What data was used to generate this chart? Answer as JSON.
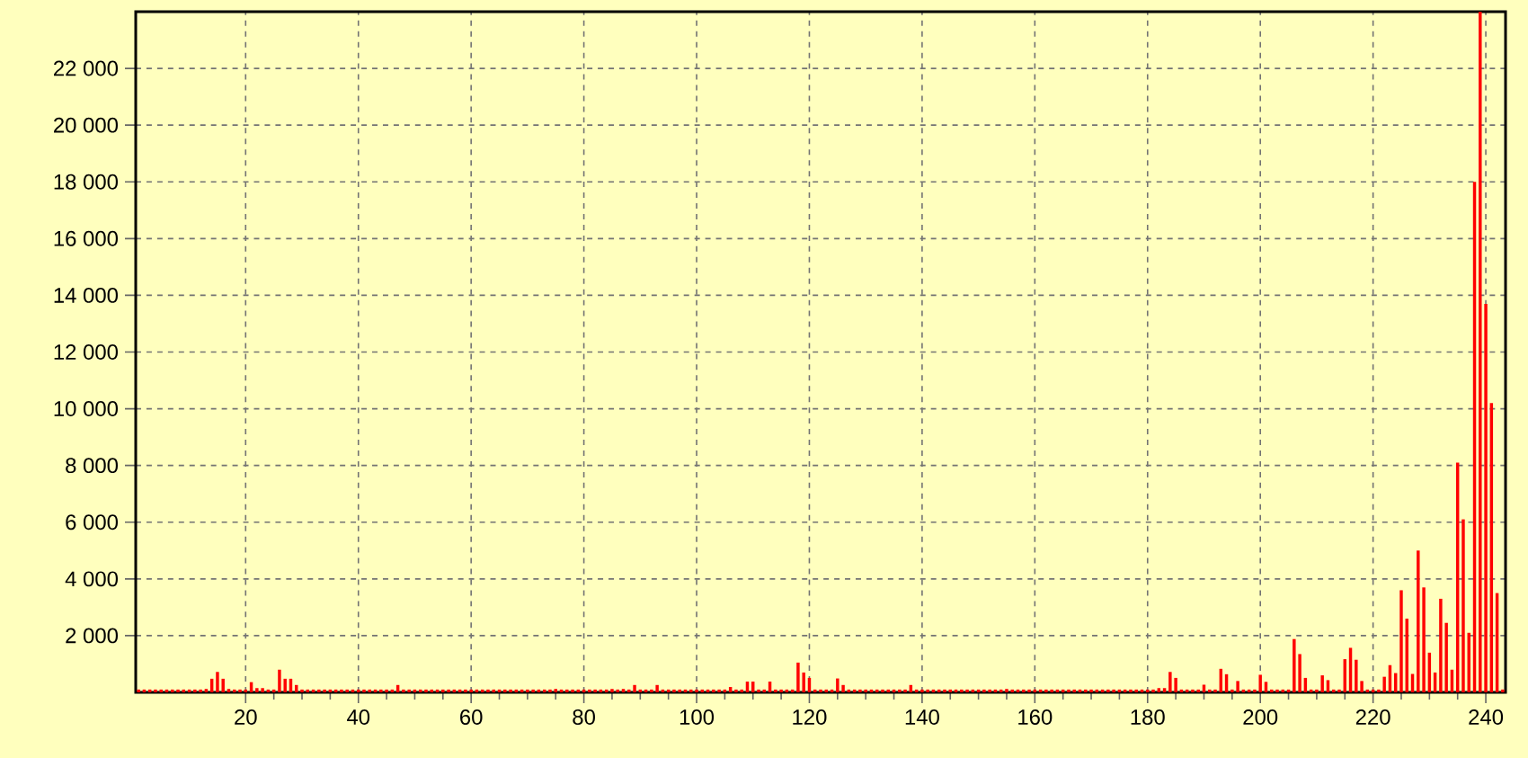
{
  "chart_data": {
    "type": "bar",
    "x": [
      1,
      2,
      3,
      4,
      5,
      6,
      7,
      8,
      9,
      10,
      11,
      12,
      13,
      14,
      15,
      16,
      17,
      18,
      19,
      20,
      21,
      22,
      23,
      24,
      25,
      26,
      27,
      28,
      29,
      30,
      31,
      32,
      33,
      34,
      35,
      36,
      37,
      38,
      39,
      40,
      41,
      42,
      43,
      44,
      45,
      46,
      47,
      48,
      49,
      50,
      51,
      52,
      53,
      54,
      55,
      56,
      57,
      58,
      59,
      60,
      61,
      62,
      63,
      64,
      65,
      66,
      67,
      68,
      69,
      70,
      71,
      72,
      73,
      74,
      75,
      76,
      77,
      78,
      79,
      80,
      81,
      82,
      83,
      84,
      85,
      86,
      87,
      88,
      89,
      90,
      91,
      92,
      93,
      94,
      95,
      96,
      97,
      98,
      99,
      100,
      101,
      102,
      103,
      104,
      105,
      106,
      107,
      108,
      109,
      110,
      111,
      112,
      113,
      114,
      115,
      116,
      117,
      118,
      119,
      120,
      121,
      122,
      123,
      124,
      125,
      126,
      127,
      128,
      129,
      130,
      131,
      132,
      133,
      134,
      135,
      136,
      137,
      138,
      139,
      140,
      141,
      142,
      143,
      144,
      145,
      146,
      147,
      148,
      149,
      150,
      151,
      152,
      153,
      154,
      155,
      156,
      157,
      158,
      159,
      160,
      161,
      162,
      163,
      164,
      165,
      166,
      167,
      168,
      169,
      170,
      171,
      172,
      173,
      174,
      175,
      176,
      177,
      178,
      179,
      180,
      181,
      182,
      183,
      184,
      185,
      186,
      187,
      188,
      189,
      190,
      191,
      192,
      193,
      194,
      195,
      196,
      197,
      198,
      199,
      200,
      201,
      202,
      203,
      204,
      205,
      206,
      207,
      208,
      209,
      210,
      211,
      212,
      213,
      214,
      215,
      216,
      217,
      218,
      219,
      220,
      221,
      222,
      223,
      224,
      225,
      226,
      227,
      228,
      229,
      230,
      231,
      232,
      233,
      234,
      235,
      236,
      237,
      238,
      239,
      240,
      241,
      242,
      243
    ],
    "values": [
      100,
      100,
      100,
      100,
      100,
      100,
      100,
      100,
      100,
      100,
      100,
      100,
      120,
      480,
      720,
      480,
      120,
      100,
      100,
      100,
      360,
      150,
      150,
      100,
      100,
      800,
      480,
      480,
      260,
      100,
      100,
      100,
      100,
      100,
      100,
      100,
      100,
      100,
      100,
      100,
      100,
      100,
      100,
      100,
      100,
      100,
      260,
      100,
      100,
      100,
      100,
      100,
      100,
      100,
      100,
      100,
      100,
      100,
      100,
      100,
      100,
      100,
      100,
      100,
      100,
      100,
      100,
      100,
      100,
      100,
      100,
      100,
      100,
      100,
      120,
      100,
      100,
      100,
      100,
      100,
      100,
      100,
      100,
      100,
      120,
      100,
      120,
      100,
      260,
      100,
      100,
      100,
      260,
      100,
      100,
      100,
      100,
      100,
      100,
      100,
      100,
      100,
      100,
      100,
      100,
      190,
      100,
      100,
      380,
      380,
      100,
      100,
      380,
      100,
      100,
      100,
      100,
      1050,
      700,
      510,
      100,
      100,
      100,
      100,
      490,
      260,
      100,
      100,
      100,
      100,
      100,
      100,
      100,
      100,
      100,
      100,
      100,
      260,
      100,
      100,
      100,
      100,
      100,
      100,
      100,
      100,
      100,
      100,
      100,
      100,
      100,
      100,
      100,
      100,
      120,
      100,
      100,
      100,
      100,
      100,
      100,
      100,
      100,
      100,
      100,
      100,
      100,
      100,
      100,
      100,
      100,
      100,
      100,
      100,
      100,
      100,
      100,
      100,
      100,
      100,
      100,
      150,
      150,
      720,
      510,
      100,
      100,
      100,
      100,
      270,
      100,
      100,
      830,
      640,
      100,
      400,
      100,
      100,
      100,
      620,
      370,
      100,
      100,
      100,
      100,
      1880,
      1350,
      510,
      100,
      100,
      600,
      430,
      100,
      100,
      1170,
      1570,
      1150,
      400,
      100,
      100,
      100,
      550,
      960,
      680,
      3600,
      2600,
      650,
      5000,
      3700,
      1400,
      700,
      3300,
      2450,
      800,
      8100,
      6100,
      2100,
      18000,
      24000,
      13700,
      10200,
      3500,
      100
    ],
    "color": "#ff0000",
    "xlim": [
      0.5,
      243.5
    ],
    "ylim": [
      0,
      24000
    ],
    "xticks": [
      20,
      40,
      60,
      80,
      100,
      120,
      140,
      160,
      180,
      200,
      220,
      240
    ],
    "yticks": [
      {
        "value": 2000,
        "label": "2 000"
      },
      {
        "value": 4000,
        "label": "4 000"
      },
      {
        "value": 6000,
        "label": "6 000"
      },
      {
        "value": 8000,
        "label": "8 000"
      },
      {
        "value": 10000,
        "label": "10 000"
      },
      {
        "value": 12000,
        "label": "12 000"
      },
      {
        "value": 14000,
        "label": "14 000"
      },
      {
        "value": 16000,
        "label": "16 000"
      },
      {
        "value": 18000,
        "label": "18 000"
      },
      {
        "value": 20000,
        "label": "20 000"
      },
      {
        "value": 22000,
        "label": "22 000"
      }
    ],
    "grid": true
  }
}
